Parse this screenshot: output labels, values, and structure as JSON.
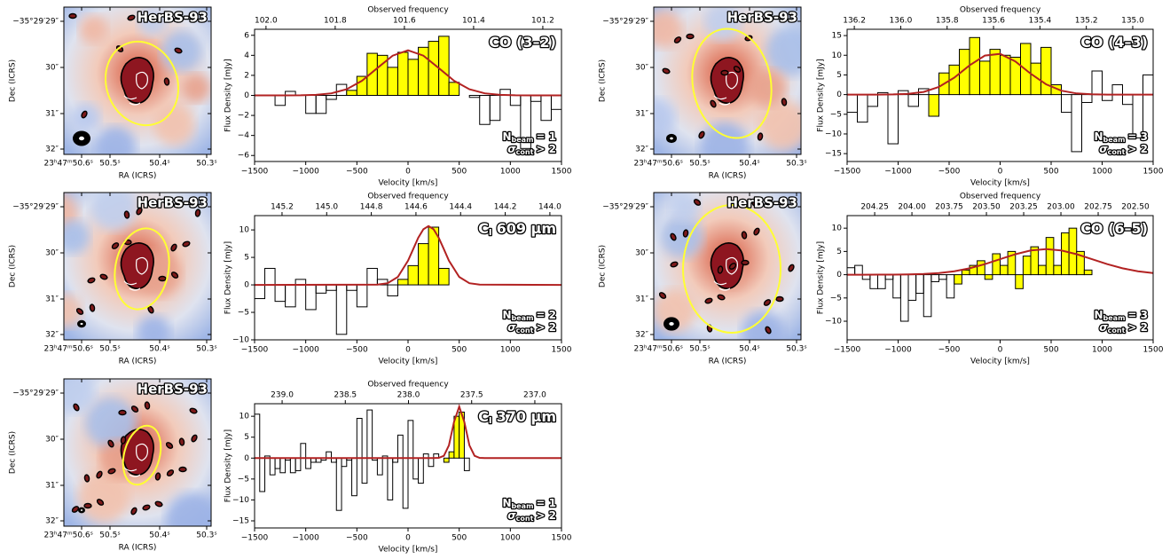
{
  "maps": {
    "label": "HerBS-93",
    "xlabel": "RA (ICRS)",
    "ylabel": "Dec (ICRS)",
    "xticks": [
      "23ʰ47ᵐ50.6ˢ",
      "50.5ˢ",
      "50.4ˢ",
      "50.3ˢ"
    ],
    "yticks": [
      "−35°29′29″",
      "30″",
      "31″",
      "32″"
    ]
  },
  "chart_data": [
    {
      "type": "histogram",
      "title": "CO (3–2)",
      "xlabel": "Velocity [km/s]",
      "ylabel": "Flux Density [mJy]",
      "x2label": "Observed frequency",
      "annotation": {
        "n": "N",
        "n_sub": "beam",
        "n_rel": "= 1",
        "s": "σ",
        "s_sub": "cont",
        "s_rel": "> 2"
      },
      "xlim": [
        -1500,
        1500
      ],
      "xticks": [
        {
          "value": -1500,
          "label": "−1500"
        },
        {
          "value": -1000,
          "label": "−1000"
        },
        {
          "value": -500,
          "label": "−500"
        },
        0,
        500,
        1000,
        1500
      ],
      "x2lim": [
        102.033,
        101.146
      ],
      "x2ticks": [
        {
          "value": 102.0,
          "label": "102.0"
        },
        {
          "value": 101.8,
          "label": "101.8"
        },
        {
          "value": 101.6,
          "label": "101.6"
        },
        {
          "value": 101.4,
          "label": "101.4"
        },
        {
          "value": 101.2,
          "label": "101.2"
        }
      ],
      "ylim": [
        -6.6,
        6.6
      ],
      "yticks": [
        {
          "value": -6,
          "label": "−6"
        },
        {
          "value": -4,
          "label": "−4"
        },
        {
          "value": -2,
          "label": "−2"
        },
        0,
        2,
        4,
        6
      ],
      "bins": [
        -1300,
        -1200,
        -1100,
        -1000,
        -900,
        -800,
        -700,
        -600,
        -500,
        -400,
        -300,
        -200,
        -100,
        0,
        100,
        200,
        300,
        400,
        500,
        600,
        700,
        800,
        900,
        1000,
        1100,
        1200,
        1300,
        1400,
        1500
      ],
      "values": [
        -1.0,
        0.4,
        0.0,
        -1.8,
        -1.8,
        -0.4,
        1.1,
        0.5,
        1.9,
        4.2,
        4.0,
        2.8,
        4.3,
        3.6,
        4.8,
        5.4,
        5.9,
        1.3,
        0.0,
        -0.2,
        -2.9,
        -2.5,
        0.6,
        -1.0,
        -5.3,
        -0.6,
        -2.5,
        -1.4
      ],
      "highlight": [
        -600,
        500
      ],
      "color": "#ffff00",
      "fit": {
        "color": "#b22222",
        "x": [
          -1500,
          -1350,
          -1200,
          -1050,
          -900,
          -750,
          -600,
          -450,
          -300,
          -150,
          0,
          150,
          300,
          450,
          600,
          750,
          900,
          1050,
          1200,
          1350,
          1500
        ],
        "values": [
          0,
          0,
          0,
          0.01,
          0.05,
          0.2,
          0.61,
          1.46,
          2.73,
          3.97,
          4.5,
          3.97,
          2.73,
          1.46,
          0.61,
          0.2,
          0.05,
          0.01,
          0,
          0,
          0
        ]
      }
    },
    {
      "type": "histogram",
      "title": "CO (4–3)",
      "xlabel": "Velocity [km/s]",
      "ylabel": "Flux Density [mJy]",
      "x2label": "Observed frequency",
      "annotation": {
        "n": "N",
        "n_sub": "beam",
        "n_rel": "= 3",
        "s": "σ",
        "s_sub": "cont",
        "s_rel": "> 2"
      },
      "xlim": [
        -1500,
        1500
      ],
      "xticks": [
        {
          "value": -1500,
          "label": "−1500"
        },
        {
          "value": -1000,
          "label": "−1000"
        },
        {
          "value": -500,
          "label": "−500"
        },
        0,
        500,
        1000,
        1500
      ],
      "x2lim": [
        136.231,
        134.912
      ],
      "x2ticks": [
        {
          "value": 136.2,
          "label": "136.2"
        },
        {
          "value": 136.0,
          "label": "136.0"
        },
        {
          "value": 135.8,
          "label": "135.8"
        },
        {
          "value": 135.6,
          "label": "135.6"
        },
        {
          "value": 135.4,
          "label": "135.4"
        },
        {
          "value": 135.2,
          "label": "135.2"
        },
        {
          "value": 135.0,
          "label": "135.0"
        }
      ],
      "ylim": [
        -17,
        16.6
      ],
      "yticks": [
        {
          "value": -15,
          "label": "−15"
        },
        {
          "value": -10,
          "label": "−10"
        },
        {
          "value": -5,
          "label": "−5"
        },
        0,
        5,
        10,
        15
      ],
      "bins": [
        -1500,
        -1400,
        -1300,
        -1200,
        -1100,
        -1000,
        -900,
        -800,
        -700,
        -600,
        -500,
        -400,
        -300,
        -200,
        -100,
        0,
        100,
        200,
        300,
        400,
        500,
        600,
        700,
        800,
        900,
        1000,
        1100,
        1200,
        1300,
        1400,
        1500
      ],
      "values": [
        -4.5,
        -7,
        -3,
        0.5,
        -12.5,
        1,
        -3,
        1.5,
        -5.5,
        5.5,
        7.5,
        11.5,
        14.5,
        8.5,
        11.5,
        10,
        9.5,
        13,
        8,
        12,
        2.5,
        -4.5,
        -14.5,
        -2,
        6,
        -1.5,
        2.5,
        -2.5,
        -11,
        5
      ],
      "highlight": [
        -700,
        600
      ],
      "color": "#ffff00",
      "fit": {
        "color": "#b22222",
        "x": [
          -1500,
          -1350,
          -1200,
          -1050,
          -900,
          -750,
          -600,
          -450,
          -300,
          -150,
          0,
          150,
          300,
          450,
          600,
          750,
          900,
          1050,
          1200,
          1350,
          1500
        ],
        "values": [
          0,
          0,
          0.01,
          0.04,
          0.19,
          0.69,
          1.96,
          4.32,
          7.42,
          9.93,
          10.35,
          8.41,
          5.31,
          2.62,
          1.0,
          0.3,
          0.07,
          0.01,
          0,
          0,
          0
        ]
      }
    },
    {
      "type": "histogram",
      "title": "C",
      "title_sub": "I",
      "title_rest": "609 μm",
      "xlabel": "Velocity [km/s]",
      "ylabel": "Flux Density [mJy]",
      "x2label": "Observed frequency",
      "annotation": {
        "n": "N",
        "n_sub": "beam",
        "n_rel": "= 2",
        "s": "σ",
        "s_sub": "cont",
        "s_rel": "> 2"
      },
      "xlim": [
        -1500,
        1500
      ],
      "xticks": [
        {
          "value": -1500,
          "label": "−1500"
        },
        {
          "value": -1000,
          "label": "−1000"
        },
        {
          "value": -500,
          "label": "−500"
        },
        0,
        500,
        1000,
        1500
      ],
      "x2lim": [
        145.323,
        143.948
      ],
      "x2ticks": [
        {
          "value": 145.2,
          "label": "145.2"
        },
        {
          "value": 145.0,
          "label": "145.0"
        },
        {
          "value": 144.8,
          "label": "144.8"
        },
        {
          "value": 144.6,
          "label": "144.6"
        },
        {
          "value": 144.4,
          "label": "144.4"
        },
        {
          "value": 144.2,
          "label": "144.2"
        },
        {
          "value": 144.0,
          "label": "144.0"
        }
      ],
      "ylim": [
        -10,
        12.6
      ],
      "yticks": [
        {
          "value": -10,
          "label": "−10"
        },
        {
          "value": -5,
          "label": "−5"
        },
        0,
        5,
        10
      ],
      "bins": [
        -1500,
        -1400,
        -1300,
        -1200,
        -1100,
        -1000,
        -900,
        -800,
        -700,
        -600,
        -500,
        -400,
        -300,
        -200,
        -100,
        0,
        100,
        200,
        300,
        400
      ],
      "values": [
        -2.5,
        3,
        -3,
        -4,
        1,
        -4.5,
        -1.5,
        -1,
        -9,
        -1,
        -4,
        3,
        1,
        -2,
        1,
        3.5,
        7.5,
        10.5,
        3
      ],
      "highlight": [
        -100,
        400
      ],
      "color": "#ffff00",
      "fit": {
        "color": "#b22222",
        "x": [
          -1500,
          -300,
          -200,
          -100,
          0,
          50,
          100,
          150,
          200,
          250,
          300,
          350,
          400,
          500,
          600,
          700,
          1500
        ],
        "values": [
          0,
          0.04,
          0.3,
          1.45,
          4.4,
          6.49,
          8.57,
          10.12,
          10.7,
          10.12,
          8.57,
          6.49,
          4.4,
          1.45,
          0.3,
          0.04,
          0
        ]
      }
    },
    {
      "type": "histogram",
      "title": "CO (6–5)",
      "xlabel": "Velocity [km/s]",
      "ylabel": "Flux Density [mJy]",
      "x2label": "Observed frequency",
      "annotation": {
        "n": "N",
        "n_sub": "beam",
        "n_rel": "= 3",
        "s": "σ",
        "s_sub": "cont",
        "s_rel": "> 2"
      },
      "xlim": [
        -1500,
        1500
      ],
      "xticks": [
        {
          "value": -1500,
          "label": "−1500"
        },
        {
          "value": -1000,
          "label": "−1000"
        },
        {
          "value": -500,
          "label": "−500"
        },
        0,
        500,
        1000,
        1500
      ],
      "x2lim": [
        204.435,
        202.381
      ],
      "x2ticks": [
        {
          "value": 204.25,
          "label": "204.25"
        },
        {
          "value": 204.0,
          "label": "204.00"
        },
        {
          "value": 203.75,
          "label": "203.75"
        },
        {
          "value": 203.5,
          "label": "203.50"
        },
        {
          "value": 203.25,
          "label": "203.25"
        },
        {
          "value": 203.0,
          "label": "203.00"
        },
        {
          "value": 202.75,
          "label": "202.75"
        },
        {
          "value": 202.5,
          "label": "202.50"
        }
      ],
      "ylim": [
        -14,
        12.7
      ],
      "yticks": [
        {
          "value": -10,
          "label": "−10"
        },
        {
          "value": -5,
          "label": "−5"
        },
        0,
        5,
        10
      ],
      "bins": [
        -1500,
        -1425,
        -1350,
        -1275,
        -1200,
        -1125,
        -1050,
        -975,
        -900,
        -825,
        -750,
        -675,
        -600,
        -525,
        -450,
        -375,
        -300,
        -225,
        -150,
        -75,
        0,
        75,
        150,
        225,
        300,
        375,
        450,
        525,
        600,
        675,
        750,
        825,
        900
      ],
      "values": [
        1.5,
        2,
        -1,
        -3,
        -3,
        -1,
        -5,
        -10,
        -5.5,
        -4,
        -9,
        -1.5,
        -1,
        -5,
        -2,
        1,
        2,
        3,
        -1,
        4.5,
        2,
        5,
        -3,
        4,
        6,
        2,
        8,
        2,
        9,
        10,
        5,
        1
      ],
      "highlight": [
        -450,
        900
      ],
      "color": "#ffff00",
      "fit": {
        "color": "#b22222",
        "x": [
          -1500,
          -1350,
          -1200,
          -1050,
          -900,
          -750,
          -600,
          -450,
          -300,
          -150,
          0,
          150,
          300,
          450,
          600,
          750,
          900,
          1050,
          1200,
          1350,
          1500
        ],
        "values": [
          0,
          0,
          0.01,
          0.02,
          0.06,
          0.16,
          0.36,
          0.74,
          1.37,
          2.26,
          3.34,
          4.4,
          5.2,
          5.5,
          5.2,
          4.4,
          3.34,
          2.26,
          1.37,
          0.74,
          0.36
        ]
      }
    },
    {
      "type": "histogram",
      "title": "C",
      "title_sub": "I",
      "title_rest": "370 μm",
      "xlabel": "Velocity [km/s]",
      "ylabel": "Flux Density [mJy]",
      "x2label": "Observed frequency",
      "annotation": {
        "n": "N",
        "n_sub": "beam",
        "n_rel": "= 1",
        "s": "σ",
        "s_sub": "cont",
        "s_rel": "> 2"
      },
      "xlim": [
        -1500,
        1500
      ],
      "xticks": [
        {
          "value": -1500,
          "label": "−1500"
        },
        {
          "value": -1000,
          "label": "−1000"
        },
        {
          "value": -500,
          "label": "−500"
        },
        0,
        500,
        1000,
        1500
      ],
      "x2lim": [
        239.218,
        236.789
      ],
      "x2ticks": [
        {
          "value": 239.0,
          "label": "239.0"
        },
        {
          "value": 238.5,
          "label": "238.5"
        },
        {
          "value": 238.0,
          "label": "238.0"
        },
        {
          "value": 237.5,
          "label": "237.5"
        },
        {
          "value": 237.0,
          "label": "237.0"
        }
      ],
      "ylim": [
        -16.7,
        13
      ],
      "yticks": [
        {
          "value": -15,
          "label": "−15"
        },
        {
          "value": -10,
          "label": "−10"
        },
        {
          "value": -5,
          "label": "−5"
        },
        0,
        5,
        10
      ],
      "bins": [
        -1500,
        -1450,
        -1400,
        -1350,
        -1300,
        -1250,
        -1200,
        -1150,
        -1100,
        -1050,
        -1000,
        -950,
        -900,
        -850,
        -800,
        -750,
        -700,
        -650,
        -600,
        -550,
        -500,
        -450,
        -400,
        -350,
        -300,
        -250,
        -200,
        -150,
        -100,
        -50,
        0,
        50,
        100,
        150,
        200,
        250,
        300,
        350,
        400,
        450,
        500,
        550,
        600
      ],
      "values": [
        10.5,
        -8,
        0.5,
        -4,
        -2.5,
        -3.5,
        -0.5,
        -3.5,
        -3,
        3.5,
        -2.5,
        -1,
        -1,
        -0.5,
        1.5,
        -1,
        -12.5,
        -2,
        -0.5,
        -9,
        9.5,
        -6,
        11.5,
        -0.5,
        -4,
        0.5,
        -10,
        -1,
        5.5,
        -12,
        9,
        -5,
        -6,
        1,
        -2,
        1,
        0,
        -1,
        1.5,
        10,
        11,
        -3
      ],
      "highlight": [
        350,
        550
      ],
      "color": "#ffff00",
      "fit": {
        "color": "#b22222",
        "x": [
          -1500,
          250,
          300,
          350,
          400,
          450,
          500,
          550,
          600,
          650,
          700,
          750,
          1500
        ],
        "values": [
          0,
          0,
          0.05,
          0.54,
          3.06,
          8.7,
          12.3,
          8.7,
          3.06,
          0.54,
          0.05,
          0,
          0
        ]
      }
    }
  ]
}
